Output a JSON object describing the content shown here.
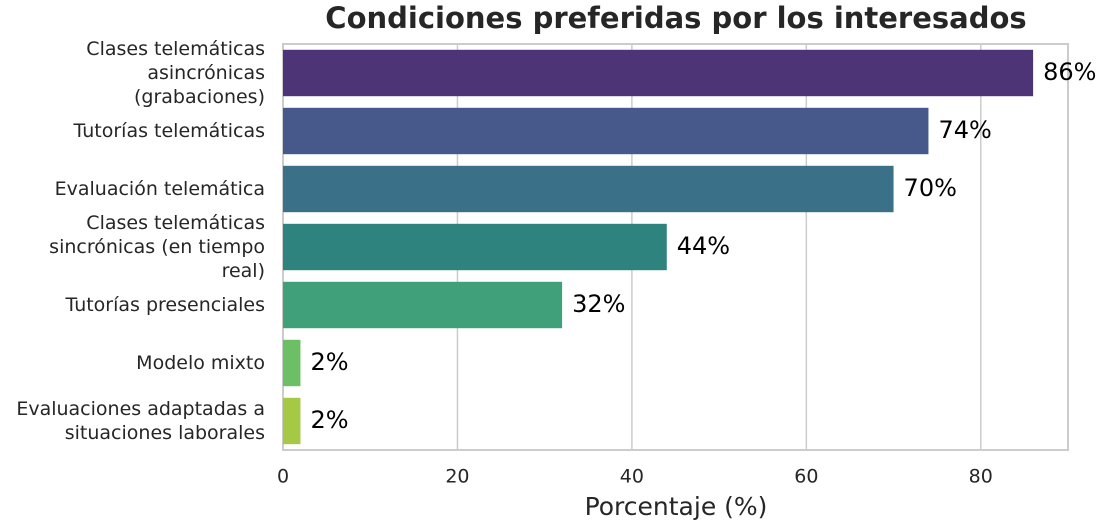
{
  "chart_data": {
    "type": "barh",
    "title": "Condiciones preferidas por los interesados",
    "xlabel": "Porcentaje (%)",
    "categories": [
      "Clases telemáticas asincrónicas (grabaciones)",
      "Tutorías telemáticas",
      "Evaluación telemática",
      "Clases telemáticas sincrónicas (en tiempo real)",
      "Tutorías presenciales",
      "Modelo mixto",
      "Evaluaciones adaptadas a situaciones laborales"
    ],
    "values": [
      86,
      74,
      70,
      44,
      32,
      2,
      2
    ],
    "value_labels": [
      "86%",
      "74%",
      "70%",
      "44%",
      "32%",
      "2%",
      "2%"
    ],
    "colors": [
      "#4d3476",
      "#46598a",
      "#3a7088",
      "#2e837f",
      "#3fa07a",
      "#6cbf64",
      "#a5c845"
    ],
    "xlim": [
      0,
      90
    ],
    "xticks": [
      0,
      20,
      40,
      60,
      80
    ],
    "grid": true
  }
}
